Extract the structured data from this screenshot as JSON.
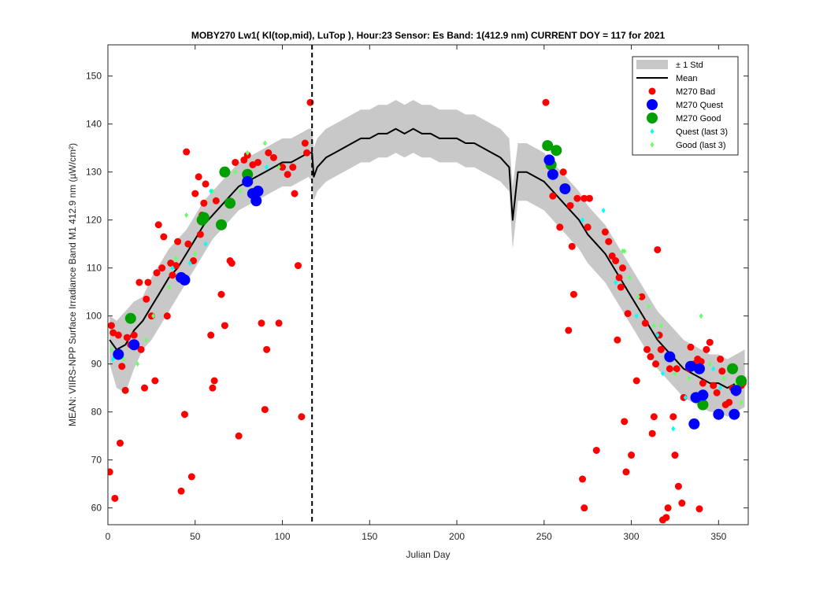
{
  "chart_data": {
    "type": "scatter",
    "title": "MOBY270   Lw1( Kl(top,mid), LuTop ),   Hour:23 Sensor: Es Band: 1(412.9 nm)   CURRENT DOY = 117 for 2021",
    "xlabel": "Julian Day",
    "ylabel": "MEAN: VIIRS-NPP Surface Irradiance Band M1 412.9 nm (µW/cm²)",
    "xlim": [
      0,
      367
    ],
    "ylim": [
      56.5,
      156.5
    ],
    "xticks": [
      0,
      50,
      100,
      150,
      200,
      250,
      300,
      350
    ],
    "yticks": [
      60,
      70,
      80,
      90,
      100,
      110,
      120,
      130,
      140,
      150
    ],
    "current_doy": 117,
    "legend_position": "top-right",
    "grid": false,
    "colors": {
      "std_band": "#c8c8c8",
      "mean": "#000000",
      "bad": "#ff0000",
      "quest": "#0000ff",
      "good": "#00a000",
      "quest_last3": "#00ffff",
      "good_last3": "#66ff66",
      "current_doy_line": "#000000"
    },
    "legend": [
      {
        "key": "std",
        "label": "± 1 Std"
      },
      {
        "key": "mean",
        "label": "Mean"
      },
      {
        "key": "bad",
        "label": "M270 Bad"
      },
      {
        "key": "quest",
        "label": "M270 Quest"
      },
      {
        "key": "good",
        "label": "M270 Good"
      },
      {
        "key": "quest_last3",
        "label": "Quest (last 3)"
      },
      {
        "key": "good_last3",
        "label": "Good (last 3)"
      }
    ],
    "mean_series": [
      [
        1,
        95
      ],
      [
        5,
        93
      ],
      [
        10,
        94
      ],
      [
        15,
        97
      ],
      [
        20,
        99
      ],
      [
        25,
        102
      ],
      [
        30,
        105
      ],
      [
        35,
        108
      ],
      [
        40,
        110
      ],
      [
        45,
        113
      ],
      [
        50,
        116
      ],
      [
        55,
        119
      ],
      [
        60,
        121
      ],
      [
        65,
        123
      ],
      [
        70,
        125
      ],
      [
        75,
        127
      ],
      [
        80,
        128
      ],
      [
        85,
        129
      ],
      [
        90,
        130
      ],
      [
        95,
        131
      ],
      [
        100,
        132
      ],
      [
        105,
        132
      ],
      [
        110,
        133
      ],
      [
        115,
        134
      ],
      [
        117,
        134
      ],
      [
        118,
        129
      ],
      [
        120,
        131
      ],
      [
        125,
        133
      ],
      [
        130,
        134
      ],
      [
        135,
        135
      ],
      [
        140,
        136
      ],
      [
        145,
        137
      ],
      [
        150,
        137
      ],
      [
        155,
        138
      ],
      [
        160,
        138
      ],
      [
        165,
        139
      ],
      [
        170,
        138
      ],
      [
        175,
        139
      ],
      [
        180,
        138
      ],
      [
        185,
        138
      ],
      [
        190,
        137
      ],
      [
        195,
        137
      ],
      [
        200,
        137
      ],
      [
        205,
        136
      ],
      [
        210,
        136
      ],
      [
        215,
        135
      ],
      [
        220,
        134
      ],
      [
        225,
        133
      ],
      [
        230,
        131
      ],
      [
        232,
        120
      ],
      [
        235,
        130
      ],
      [
        240,
        130
      ],
      [
        245,
        129
      ],
      [
        250,
        128
      ],
      [
        255,
        126
      ],
      [
        260,
        124
      ],
      [
        265,
        122
      ],
      [
        270,
        120
      ],
      [
        275,
        117
      ],
      [
        280,
        115
      ],
      [
        285,
        113
      ],
      [
        290,
        110
      ],
      [
        295,
        107
      ],
      [
        300,
        104
      ],
      [
        305,
        101
      ],
      [
        310,
        98
      ],
      [
        315,
        95
      ],
      [
        320,
        93
      ],
      [
        325,
        91
      ],
      [
        330,
        89
      ],
      [
        335,
        88
      ],
      [
        340,
        87
      ],
      [
        345,
        86
      ],
      [
        350,
        86
      ],
      [
        355,
        85
      ],
      [
        360,
        86
      ],
      [
        365,
        87
      ]
    ],
    "std_series": [
      [
        1,
        100,
        90
      ],
      [
        5,
        99,
        85
      ],
      [
        10,
        101,
        84
      ],
      [
        15,
        103,
        89
      ],
      [
        20,
        104,
        93
      ],
      [
        25,
        108,
        95
      ],
      [
        30,
        111,
        98
      ],
      [
        35,
        114,
        101
      ],
      [
        40,
        116,
        104
      ],
      [
        45,
        118,
        107
      ],
      [
        50,
        121,
        110
      ],
      [
        55,
        124,
        113
      ],
      [
        60,
        126,
        116
      ],
      [
        65,
        128,
        118
      ],
      [
        70,
        130,
        120
      ],
      [
        75,
        132,
        122
      ],
      [
        80,
        133,
        123
      ],
      [
        85,
        134,
        124
      ],
      [
        90,
        135,
        125
      ],
      [
        95,
        136,
        126
      ],
      [
        100,
        137,
        127
      ],
      [
        105,
        137,
        127
      ],
      [
        110,
        138,
        128
      ],
      [
        115,
        139,
        129
      ],
      [
        117,
        139,
        128
      ],
      [
        118,
        135,
        124
      ],
      [
        120,
        137,
        126
      ],
      [
        125,
        139,
        128
      ],
      [
        130,
        140,
        129
      ],
      [
        135,
        141,
        130
      ],
      [
        140,
        142,
        131
      ],
      [
        145,
        143,
        132
      ],
      [
        150,
        143,
        132
      ],
      [
        155,
        144,
        133
      ],
      [
        160,
        144,
        133
      ],
      [
        165,
        145,
        134
      ],
      [
        170,
        144,
        133
      ],
      [
        175,
        145,
        134
      ],
      [
        180,
        144,
        133
      ],
      [
        185,
        144,
        133
      ],
      [
        190,
        143,
        132
      ],
      [
        195,
        143,
        132
      ],
      [
        200,
        143,
        132
      ],
      [
        205,
        142,
        131
      ],
      [
        210,
        142,
        131
      ],
      [
        215,
        141,
        130
      ],
      [
        220,
        140,
        129
      ],
      [
        225,
        139,
        128
      ],
      [
        230,
        137,
        126
      ],
      [
        232,
        127,
        114
      ],
      [
        235,
        136,
        124
      ],
      [
        240,
        136,
        124
      ],
      [
        245,
        135,
        123
      ],
      [
        250,
        134,
        122
      ],
      [
        255,
        132,
        120
      ],
      [
        260,
        130,
        118
      ],
      [
        265,
        128,
        116
      ],
      [
        270,
        126,
        114
      ],
      [
        275,
        123,
        111
      ],
      [
        280,
        121,
        109
      ],
      [
        285,
        119,
        107
      ],
      [
        290,
        116,
        104
      ],
      [
        295,
        113,
        101
      ],
      [
        300,
        110,
        98
      ],
      [
        305,
        107,
        95
      ],
      [
        310,
        104,
        92
      ],
      [
        315,
        101,
        89
      ],
      [
        320,
        99,
        87
      ],
      [
        325,
        97,
        85
      ],
      [
        330,
        95,
        83
      ],
      [
        335,
        94,
        82
      ],
      [
        340,
        93,
        81
      ],
      [
        345,
        92,
        80
      ],
      [
        350,
        92,
        80
      ],
      [
        355,
        91,
        79
      ],
      [
        360,
        92,
        80
      ],
      [
        365,
        93,
        81
      ]
    ],
    "bad_points": [
      [
        1,
        67.5
      ],
      [
        2,
        98
      ],
      [
        3,
        96.5
      ],
      [
        4,
        62
      ],
      [
        6,
        96
      ],
      [
        7,
        73.5
      ],
      [
        8,
        89.5
      ],
      [
        10,
        84.5
      ],
      [
        11,
        95.5
      ],
      [
        13,
        94
      ],
      [
        15,
        96
      ],
      [
        18,
        107
      ],
      [
        19,
        93
      ],
      [
        21,
        85
      ],
      [
        22,
        103.5
      ],
      [
        23,
        107
      ],
      [
        25,
        100
      ],
      [
        27,
        86.5
      ],
      [
        28,
        109
      ],
      [
        29,
        119
      ],
      [
        31,
        110
      ],
      [
        32,
        116.5
      ],
      [
        34,
        100
      ],
      [
        36,
        111
      ],
      [
        37,
        108.5
      ],
      [
        39,
        110.5
      ],
      [
        40,
        115.5
      ],
      [
        42,
        63.5
      ],
      [
        44,
        79.5
      ],
      [
        45,
        134.2
      ],
      [
        46,
        115
      ],
      [
        48,
        66.5
      ],
      [
        49,
        111.5
      ],
      [
        50,
        125.5
      ],
      [
        52,
        129
      ],
      [
        53,
        117
      ],
      [
        54,
        121
      ],
      [
        55,
        123.5
      ],
      [
        56,
        127.5
      ],
      [
        59,
        96
      ],
      [
        60,
        85
      ],
      [
        61,
        86.5
      ],
      [
        62,
        124
      ],
      [
        65,
        104.5
      ],
      [
        67,
        98
      ],
      [
        70,
        111.5
      ],
      [
        71,
        111
      ],
      [
        73,
        132
      ],
      [
        75,
        75
      ],
      [
        78,
        132.5
      ],
      [
        80,
        133.5
      ],
      [
        83,
        131.5
      ],
      [
        86,
        132
      ],
      [
        88,
        98.5
      ],
      [
        90,
        80.5
      ],
      [
        91,
        93
      ],
      [
        92,
        134
      ],
      [
        95,
        133
      ],
      [
        98,
        98.5
      ],
      [
        100,
        131
      ],
      [
        103,
        129.5
      ],
      [
        106,
        131
      ],
      [
        107,
        125.5
      ],
      [
        109,
        110.5
      ],
      [
        111,
        79
      ],
      [
        113,
        136
      ],
      [
        114,
        134
      ],
      [
        116,
        144.5
      ],
      [
        251,
        144.5
      ],
      [
        255,
        125
      ],
      [
        259,
        118.5
      ],
      [
        261,
        130
      ],
      [
        264,
        97
      ],
      [
        265,
        123
      ],
      [
        266,
        114.5
      ],
      [
        267,
        104.5
      ],
      [
        269,
        124.5
      ],
      [
        272,
        66
      ],
      [
        273,
        124.5
      ],
      [
        273,
        60
      ],
      [
        275,
        118.5
      ],
      [
        276,
        124.5
      ],
      [
        280,
        72
      ],
      [
        285,
        117.5
      ],
      [
        287,
        115.5
      ],
      [
        289,
        112.5
      ],
      [
        291,
        111.5
      ],
      [
        292,
        95
      ],
      [
        293,
        108
      ],
      [
        294,
        106
      ],
      [
        295,
        110
      ],
      [
        296,
        78
      ],
      [
        297,
        67.5
      ],
      [
        298,
        100.5
      ],
      [
        300,
        71
      ],
      [
        303,
        86.5
      ],
      [
        306,
        104
      ],
      [
        308,
        98.5
      ],
      [
        309,
        93
      ],
      [
        311,
        91.5
      ],
      [
        312,
        75.5
      ],
      [
        313,
        79
      ],
      [
        314,
        90
      ],
      [
        315,
        113.8
      ],
      [
        316,
        96
      ],
      [
        317,
        93
      ],
      [
        318,
        57.5
      ],
      [
        320,
        58
      ],
      [
        321,
        60
      ],
      [
        322,
        89
      ],
      [
        324,
        79
      ],
      [
        325,
        71
      ],
      [
        326,
        89
      ],
      [
        327,
        64.5
      ],
      [
        329,
        61
      ],
      [
        330,
        83
      ],
      [
        333,
        89
      ],
      [
        334,
        93.5
      ],
      [
        336,
        90
      ],
      [
        338,
        91
      ],
      [
        339,
        59.8
      ],
      [
        340,
        90.5
      ],
      [
        341,
        86
      ],
      [
        343,
        93
      ],
      [
        345,
        94.5
      ],
      [
        347,
        85.5
      ],
      [
        349,
        84
      ],
      [
        351,
        91
      ],
      [
        352,
        88.5
      ],
      [
        354,
        81.5
      ],
      [
        356,
        82
      ],
      [
        358,
        85
      ],
      [
        360,
        84
      ],
      [
        363,
        85.5
      ],
      [
        364,
        86
      ]
    ],
    "quest_points": [
      [
        6,
        92
      ],
      [
        15,
        94
      ],
      [
        42,
        108
      ],
      [
        44,
        107.5
      ],
      [
        80,
        128
      ],
      [
        83,
        125.5
      ],
      [
        85,
        124
      ],
      [
        86,
        126
      ],
      [
        253,
        132.5
      ],
      [
        255,
        129.5
      ],
      [
        262,
        126.5
      ],
      [
        322,
        91.5
      ],
      [
        334,
        89.5
      ],
      [
        336,
        77.5
      ],
      [
        337,
        83
      ],
      [
        339,
        89
      ],
      [
        341,
        83.5
      ],
      [
        350,
        79.5
      ],
      [
        359,
        79.5
      ],
      [
        360,
        84.5
      ]
    ],
    "good_points": [
      [
        13,
        99.5
      ],
      [
        54,
        120
      ],
      [
        55,
        120.5
      ],
      [
        65,
        119
      ],
      [
        67,
        130
      ],
      [
        70,
        123.5
      ],
      [
        80,
        129.5
      ],
      [
        252,
        135.5
      ],
      [
        254,
        131.5
      ],
      [
        257,
        134.5
      ],
      [
        341,
        81.5
      ],
      [
        358,
        89
      ],
      [
        363,
        86.5
      ]
    ],
    "quest_last3": [
      [
        3,
        91
      ],
      [
        37,
        110
      ],
      [
        47,
        111
      ],
      [
        56,
        115
      ],
      [
        59,
        126
      ],
      [
        91,
        131
      ],
      [
        272,
        120
      ],
      [
        284,
        122
      ],
      [
        291,
        107
      ],
      [
        303,
        100
      ],
      [
        315,
        96
      ],
      [
        318,
        88
      ],
      [
        324,
        76.5
      ],
      [
        331,
        83
      ],
      [
        347,
        89
      ],
      [
        351,
        85
      ]
    ],
    "good_last3": [
      [
        2,
        93
      ],
      [
        9,
        91
      ],
      [
        17,
        90
      ],
      [
        22,
        95
      ],
      [
        26,
        100
      ],
      [
        35,
        106
      ],
      [
        39,
        112
      ],
      [
        45,
        121
      ],
      [
        50,
        113
      ],
      [
        60,
        126
      ],
      [
        73,
        130
      ],
      [
        76,
        126
      ],
      [
        80,
        134
      ],
      [
        90,
        136
      ],
      [
        98,
        131
      ],
      [
        295,
        113.5
      ],
      [
        296,
        113.5
      ],
      [
        299,
        108
      ],
      [
        304,
        104
      ],
      [
        310,
        102
      ],
      [
        313,
        98
      ],
      [
        317,
        98
      ],
      [
        320,
        91
      ],
      [
        325,
        88
      ],
      [
        333,
        87
      ],
      [
        340,
        100
      ],
      [
        345,
        90
      ],
      [
        353,
        87
      ],
      [
        360,
        86
      ],
      [
        363,
        82
      ]
    ]
  }
}
